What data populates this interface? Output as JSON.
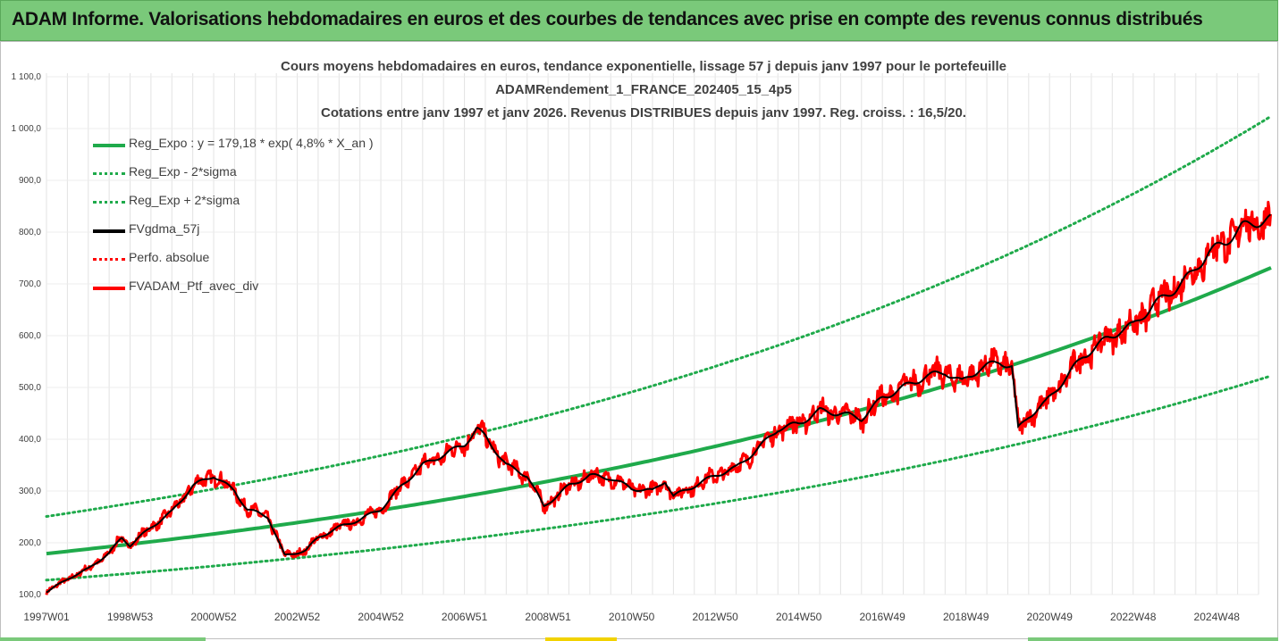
{
  "banner": {
    "title": "ADAM Informe. Valorisations hebdomadaires en euros et des courbes de tendances avec prise en compte des revenus connus distribués"
  },
  "chart_data": {
    "type": "line",
    "title_lines": [
      "Cours moyens hebdomadaires  en euros, tendance exponentielle, lissage 57 j depuis janv 1997 pour le portefeuille",
      "ADAMRendement_1_FRANCE_202405_15_4p5",
      "Cotations entre janv 1997 et janv 2026. Revenus DISTRIBUES depuis janv 1997. Reg. croiss. : 16,5/20."
    ],
    "x_range": [
      1997.0,
      2026.0
    ],
    "ylim": [
      100,
      1100
    ],
    "y_ticks": [
      "100,0",
      "200,0",
      "300,0",
      "400,0",
      "500,0",
      "600,0",
      "700,0",
      "800,0",
      "900,0",
      "1 000,0",
      "1 100,0"
    ],
    "x_ticks": [
      {
        "label": "1997W01",
        "x": 1997.0
      },
      {
        "label": "1998W53",
        "x": 1999.0
      },
      {
        "label": "2000W52",
        "x": 2001.0
      },
      {
        "label": "2002W52",
        "x": 2003.0
      },
      {
        "label": "2004W52",
        "x": 2005.0
      },
      {
        "label": "2006W51",
        "x": 2007.0
      },
      {
        "label": "2008W51",
        "x": 2009.0
      },
      {
        "label": "2010W50",
        "x": 2011.0
      },
      {
        "label": "2012W50",
        "x": 2013.0
      },
      {
        "label": "2014W50",
        "x": 2015.0
      },
      {
        "label": "2016W49",
        "x": 2017.0
      },
      {
        "label": "2018W49",
        "x": 2019.0
      },
      {
        "label": "2020W49",
        "x": 2021.0
      },
      {
        "label": "2022W48",
        "x": 2023.0
      },
      {
        "label": "2024W48",
        "x": 2025.0
      }
    ],
    "trend": {
      "a": 179.18,
      "rate": 0.048,
      "start_year": 1997.0,
      "end_year": 2026.3,
      "sigma_factor": 1.4
    },
    "series": [
      {
        "name": "Reg_Expo : y = 179,18 * exp( 4,8% *  X_an )",
        "color": "#1faa4b",
        "style": "solid",
        "width": 4
      },
      {
        "name": "Reg_Exp - 2*sigma",
        "color": "#1faa4b",
        "style": "dotted",
        "width": 3
      },
      {
        "name": "Reg_Exp + 2*sigma",
        "color": "#1faa4b",
        "style": "dotted",
        "width": 3
      },
      {
        "name": "FVgdma_57j",
        "color": "#000000",
        "style": "solid",
        "width": 3
      },
      {
        "name": "Perfo. absolue",
        "color": "#ff0000",
        "style": "dotted",
        "width": 3
      },
      {
        "name": "FVADAM_Ptf_avec_div",
        "color": "#ff0000",
        "style": "solid",
        "width": 4
      }
    ],
    "price_points": {
      "x": [
        1997.0,
        1997.5,
        1998.0,
        1998.5,
        1998.8,
        1999.0,
        1999.5,
        2000.0,
        2000.5,
        2001.0,
        2001.5,
        2001.8,
        2002.3,
        2002.7,
        2003.2,
        2003.5,
        2004.0,
        2004.5,
        2005.0,
        2005.5,
        2006.0,
        2006.5,
        2007.0,
        2007.3,
        2007.5,
        2008.0,
        2008.5,
        2008.9,
        2009.2,
        2009.5,
        2010.0,
        2010.5,
        2011.0,
        2011.5,
        2011.8,
        2012.0,
        2012.5,
        2013.0,
        2013.5,
        2014.0,
        2014.5,
        2015.0,
        2015.5,
        2016.0,
        2016.5,
        2017.0,
        2017.5,
        2018.0,
        2018.5,
        2018.9,
        2019.3,
        2019.8,
        2020.1,
        2020.25,
        2020.5,
        2020.9,
        2021.3,
        2021.8,
        2022.3,
        2022.7,
        2023.0,
        2023.5,
        2024.0,
        2024.4,
        2024.8,
        2025.2,
        2025.6,
        2026.0,
        2026.3
      ],
      "y": [
        105,
        130,
        150,
        180,
        210,
        195,
        230,
        260,
        310,
        330,
        300,
        265,
        250,
        175,
        185,
        210,
        230,
        245,
        265,
        310,
        350,
        370,
        390,
        420,
        405,
        350,
        330,
        270,
        290,
        310,
        330,
        325,
        305,
        300,
        320,
        290,
        310,
        330,
        345,
        380,
        420,
        430,
        455,
        450,
        440,
        480,
        500,
        520,
        530,
        510,
        535,
        550,
        540,
        420,
        445,
        470,
        510,
        560,
        590,
        610,
        620,
        660,
        690,
        720,
        760,
        780,
        810,
        820,
        825
      ]
    }
  }
}
